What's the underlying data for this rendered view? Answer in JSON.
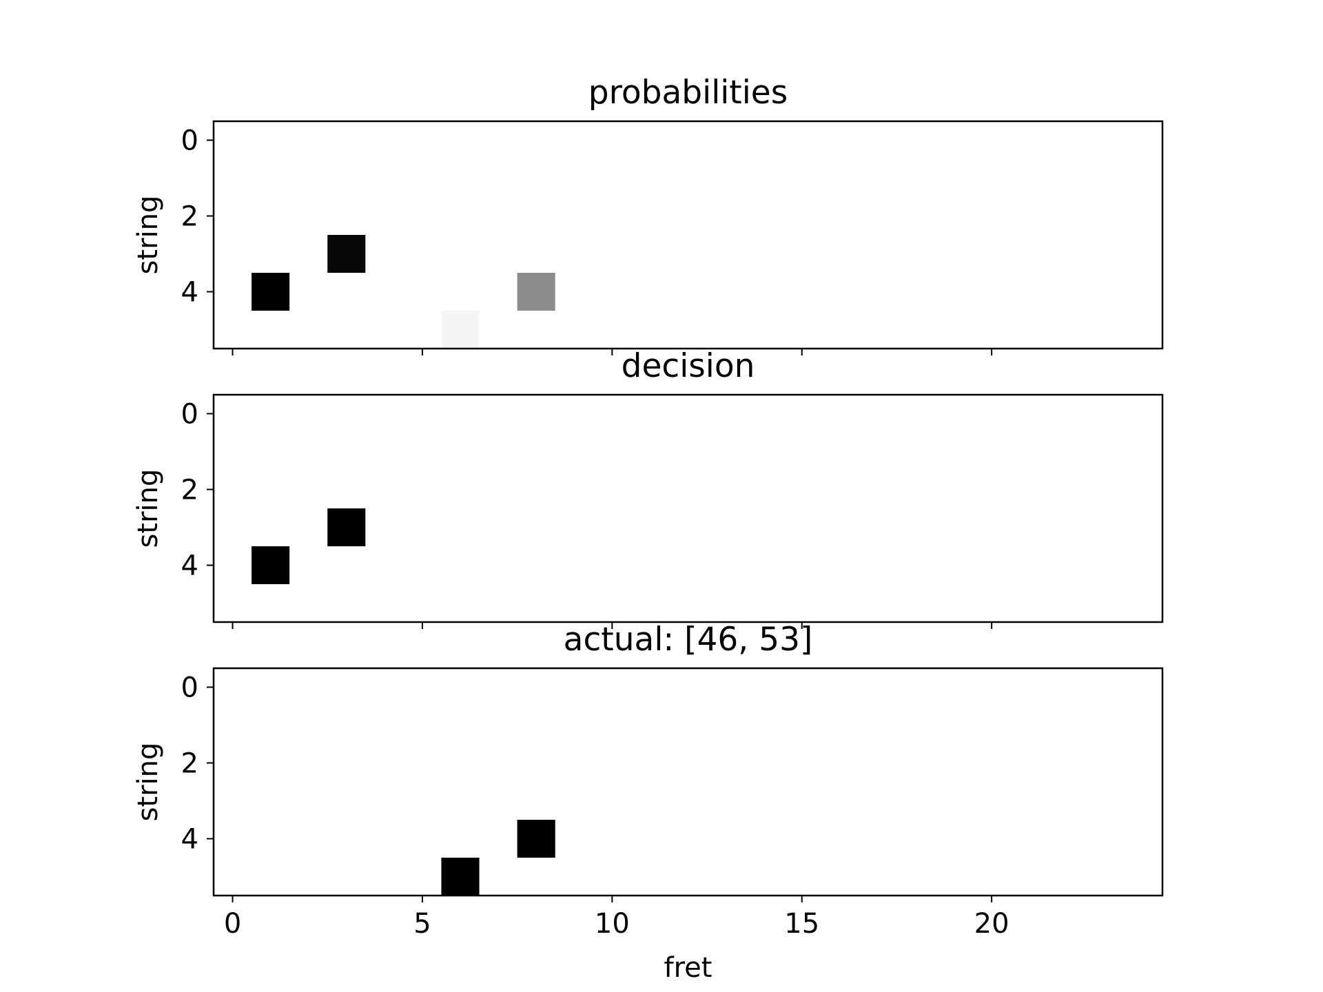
{
  "chart_data": [
    {
      "type": "heatmap",
      "title": "probabilities",
      "ylabel": "string",
      "xlabel": "",
      "xlim": [
        -0.5,
        24.5
      ],
      "ylim": [
        5.5,
        -0.5
      ],
      "cells": [
        {
          "fret": 1,
          "string": 4,
          "value": 1.0
        },
        {
          "fret": 3,
          "string": 3,
          "value": 0.97
        },
        {
          "fret": 6,
          "string": 5,
          "value": 0.04
        },
        {
          "fret": 8,
          "string": 4,
          "value": 0.45
        }
      ]
    },
    {
      "type": "heatmap",
      "title": "decision",
      "ylabel": "string",
      "xlabel": "",
      "xlim": [
        -0.5,
        24.5
      ],
      "ylim": [
        5.5,
        -0.5
      ],
      "cells": [
        {
          "fret": 1,
          "string": 4,
          "value": 1.0
        },
        {
          "fret": 3,
          "string": 3,
          "value": 1.0
        }
      ]
    },
    {
      "type": "heatmap",
      "title": "actual: [46, 53]",
      "ylabel": "string",
      "xlabel": "fret",
      "xlim": [
        -0.5,
        24.5
      ],
      "ylim": [
        5.5,
        -0.5
      ],
      "cells": [
        {
          "fret": 6,
          "string": 5,
          "value": 1.0
        },
        {
          "fret": 8,
          "string": 4,
          "value": 1.0
        }
      ]
    }
  ],
  "axes": {
    "x_ticks": [
      0,
      5,
      10,
      15,
      20
    ],
    "y_ticks": [
      0,
      2,
      4
    ],
    "colormap": "greys",
    "color_low": "#ffffff",
    "color_high": "#000000"
  }
}
